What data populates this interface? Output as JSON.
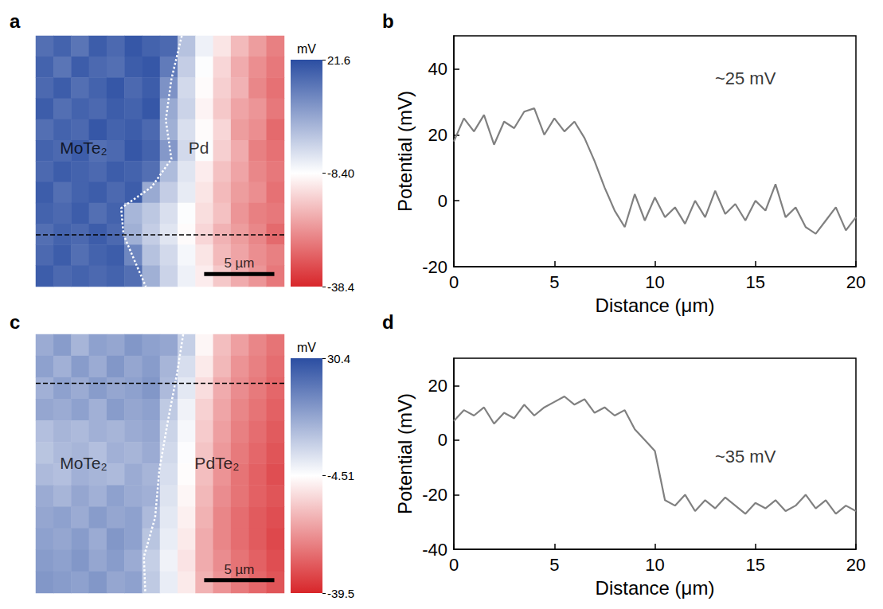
{
  "chart_data": [
    {
      "type": "heatmap",
      "panel": "a",
      "cells": [
        [
          16,
          18,
          15,
          19,
          17,
          20,
          18,
          17,
          2,
          -6,
          -12,
          -18,
          -22,
          -26
        ],
        [
          18,
          15,
          19,
          17,
          16,
          19,
          20,
          14,
          0,
          -8,
          -14,
          -20,
          -24,
          -27
        ],
        [
          17,
          19,
          16,
          18,
          20,
          17,
          19,
          10,
          -2,
          -9,
          -15,
          -19,
          -25,
          -28
        ],
        [
          19,
          16,
          18,
          17,
          19,
          18,
          20,
          6,
          -1,
          -10,
          -16,
          -21,
          -23,
          -27
        ],
        [
          16,
          18,
          17,
          20,
          18,
          19,
          17,
          5,
          -3,
          -9,
          -14,
          -22,
          -24,
          -29
        ],
        [
          18,
          17,
          19,
          16,
          17,
          20,
          18,
          9,
          -2,
          -8,
          -15,
          -20,
          -26,
          -28
        ],
        [
          17,
          19,
          18,
          17,
          19,
          18,
          16,
          3,
          -4,
          -11,
          -17,
          -21,
          -25,
          -27
        ],
        [
          19,
          16,
          18,
          19,
          17,
          19,
          6,
          0,
          -5,
          -12,
          -18,
          -22,
          -24,
          -28
        ],
        [
          18,
          17,
          19,
          16,
          18,
          4,
          1,
          -3,
          -8,
          -13,
          -17,
          -23,
          -26,
          -27
        ],
        [
          16,
          18,
          17,
          19,
          17,
          5,
          0,
          -4,
          -9,
          -14,
          -19,
          -22,
          -25,
          -29
        ],
        [
          17,
          19,
          16,
          18,
          19,
          12,
          2,
          -2,
          -7,
          -12,
          -18,
          -21,
          -24,
          -26
        ],
        [
          19,
          17,
          18,
          17,
          18,
          16,
          5,
          -1,
          -6,
          -11,
          -16,
          -20,
          -23,
          -27
        ]
      ],
      "clim": [
        -38.4,
        21.6
      ],
      "cticks": [
        21.6,
        {
          "value": -8.4,
          "label": "-8.40"
        },
        -38.4
      ],
      "colorbar_label": "mV",
      "extent": [
        17.7,
        17.9
      ],
      "boundary": [
        [
          10.4,
          0
        ],
        [
          9.66,
          3.1
        ],
        [
          9.26,
          6.0
        ],
        [
          9.66,
          8.8
        ],
        [
          8.24,
          10.8
        ],
        [
          6.08,
          12.3
        ],
        [
          6.25,
          14.2
        ],
        [
          7.1,
          16.2
        ],
        [
          7.84,
          17.9
        ]
      ],
      "profile_y": 14.2,
      "scale_bar": {
        "label": "5 µm",
        "length": 5
      },
      "labels": [
        {
          "text": "MoTe₂",
          "x": 3.4,
          "y": 8.0
        },
        {
          "text": "Pd",
          "x": 11.6,
          "y": 8.0
        }
      ]
    },
    {
      "type": "line",
      "panel": "b",
      "x": [
        0,
        0.5,
        1,
        1.5,
        2,
        2.5,
        3,
        3.5,
        4,
        4.5,
        5,
        5.5,
        6,
        6.5,
        7,
        7.5,
        8,
        8.5,
        9,
        9.5,
        10,
        10.5,
        11,
        11.5,
        12,
        12.5,
        13,
        13.5,
        14,
        14.5,
        15,
        15.5,
        16,
        16.5,
        17,
        17.5,
        18,
        18.5,
        19,
        19.5,
        20
      ],
      "values": [
        18,
        25,
        21,
        26,
        17,
        24,
        22,
        27,
        28,
        20,
        25,
        21,
        24,
        19,
        12,
        4,
        -3,
        -8,
        2,
        -6,
        1,
        -5,
        -2,
        -7,
        0,
        -5,
        3,
        -4,
        -1,
        -6,
        0,
        -3,
        5,
        -5,
        -2,
        -8,
        -10,
        -6,
        -2,
        -9,
        -5
      ],
      "color": "#808080",
      "xlabel": "Distance (μm)",
      "ylabel": "Potential (mV)",
      "xlim": [
        0,
        20
      ],
      "ylim": [
        -20,
        50
      ],
      "xticks": [
        0,
        5,
        10,
        15,
        20
      ],
      "yticks": [
        -20,
        0,
        20,
        40
      ],
      "grid": false,
      "annotations": [
        {
          "text": "~25 mV",
          "x": 14.5,
          "y": 37
        }
      ]
    },
    {
      "type": "heatmap",
      "panel": "c",
      "cells": [
        [
          12,
          15,
          10,
          14,
          13,
          16,
          14,
          13,
          5,
          -6,
          -15,
          -20,
          -24,
          -27
        ],
        [
          14,
          11,
          15,
          12,
          16,
          13,
          15,
          10,
          2,
          -8,
          -16,
          -22,
          -25,
          -28
        ],
        [
          11,
          14,
          12,
          15,
          13,
          14,
          16,
          9,
          0,
          -10,
          -18,
          -23,
          -26,
          -29
        ],
        [
          13,
          12,
          14,
          11,
          15,
          13,
          14,
          6,
          -2,
          -12,
          -19,
          -24,
          -27,
          -30
        ],
        [
          8,
          10,
          9,
          11,
          10,
          12,
          13,
          4,
          -3,
          -13,
          -20,
          -25,
          -28,
          -31
        ],
        [
          7,
          9,
          10,
          8,
          11,
          10,
          12,
          3,
          -4,
          -14,
          -21,
          -26,
          -29,
          -32
        ],
        [
          9,
          8,
          11,
          10,
          9,
          12,
          10,
          2,
          -5,
          -15,
          -22,
          -27,
          -30,
          -33
        ],
        [
          12,
          10,
          13,
          11,
          14,
          12,
          11,
          1,
          -6,
          -16,
          -23,
          -27,
          -30,
          -32
        ],
        [
          13,
          14,
          12,
          15,
          13,
          14,
          9,
          0,
          -7,
          -17,
          -24,
          -28,
          -31,
          -33
        ],
        [
          14,
          13,
          15,
          12,
          16,
          14,
          7,
          -1,
          -8,
          -18,
          -24,
          -28,
          -31,
          -34
        ],
        [
          15,
          14,
          16,
          13,
          15,
          12,
          5,
          -2,
          -9,
          -18,
          -23,
          -27,
          -30,
          -33
        ],
        [
          16,
          15,
          14,
          16,
          13,
          14,
          6,
          -1,
          -8,
          -17,
          -22,
          -26,
          -29,
          -32
        ]
      ],
      "clim": [
        -39.5,
        30.4
      ],
      "cticks": [
        30.4,
        -4.51,
        -39.5
      ],
      "colorbar_label": "mV",
      "extent": [
        17.7,
        18.5
      ],
      "boundary": [
        [
          10.5,
          0
        ],
        [
          10.06,
          2.8
        ],
        [
          9.4,
          6.25
        ],
        [
          8.8,
          9.7
        ],
        [
          8.5,
          13.1
        ],
        [
          7.7,
          15.9
        ],
        [
          7.8,
          18.5
        ]
      ],
      "profile_y": 3.5,
      "scale_bar": {
        "label": "5 µm",
        "length": 5
      },
      "labels": [
        {
          "text": "MoTe₂",
          "x": 3.4,
          "y": 9.2
        },
        {
          "text": "PdTe₂",
          "x": 12.9,
          "y": 9.2
        }
      ]
    },
    {
      "type": "line",
      "panel": "d",
      "x": [
        0,
        0.5,
        1,
        1.5,
        2,
        2.5,
        3,
        3.5,
        4,
        4.5,
        5,
        5.5,
        6,
        6.5,
        7,
        7.5,
        8,
        8.5,
        9,
        9.5,
        10,
        10.5,
        11,
        11.5,
        12,
        12.5,
        13,
        13.5,
        14,
        14.5,
        15,
        15.5,
        16,
        16.5,
        17,
        17.5,
        18,
        18.5,
        19,
        19.5,
        20
      ],
      "values": [
        7,
        11,
        9,
        12,
        6,
        10,
        8,
        13,
        9,
        12,
        14,
        16,
        13,
        15,
        10,
        12,
        9,
        11,
        4,
        0,
        -4,
        -22,
        -24,
        -20,
        -26,
        -22,
        -25,
        -21,
        -24,
        -27,
        -23,
        -25,
        -22,
        -26,
        -24,
        -20,
        -25,
        -22,
        -27,
        -24,
        -26
      ],
      "color": "#808080",
      "xlabel": "Distance (μm)",
      "ylabel": "Potential (mV)",
      "xlim": [
        0,
        20
      ],
      "ylim": [
        -40,
        30
      ],
      "xticks": [
        0,
        5,
        10,
        15,
        20
      ],
      "yticks": [
        -40,
        -20,
        0,
        20
      ],
      "grid": false,
      "annotations": [
        {
          "text": "~35 mV",
          "x": 14.5,
          "y": -6
        }
      ]
    }
  ]
}
